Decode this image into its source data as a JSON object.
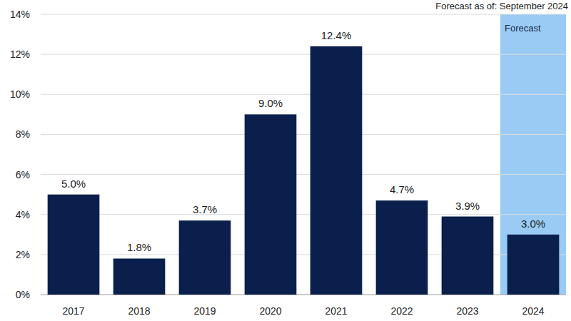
{
  "chart_data": {
    "type": "bar",
    "subtitle": "Forecast as of: September 2024",
    "categories": [
      "2017",
      "2018",
      "2019",
      "2020",
      "2021",
      "2022",
      "2023",
      "2024"
    ],
    "values": [
      5.0,
      1.8,
      3.7,
      9.0,
      12.4,
      4.7,
      3.9,
      3.0
    ],
    "value_labels": [
      "5.0%",
      "1.8%",
      "3.7%",
      "9.0%",
      "12.4%",
      "4.7%",
      "3.9%",
      "3.0%"
    ],
    "color": "#0b1f4d",
    "ylim": [
      0,
      14
    ],
    "yticks": [
      {
        "value": 0,
        "label": "0%"
      },
      {
        "value": 2,
        "label": "2%"
      },
      {
        "value": 4,
        "label": "4%"
      },
      {
        "value": 6,
        "label": "6%"
      },
      {
        "value": 8,
        "label": "8%"
      },
      {
        "value": 10,
        "label": "10%"
      },
      {
        "value": 12,
        "label": "12%"
      },
      {
        "value": 14,
        "label": "14%"
      }
    ],
    "grid": true,
    "data_labels": true,
    "annotations": [
      {
        "text": "Forecast",
        "category": "2024",
        "color": "#99cbf4"
      }
    ]
  }
}
